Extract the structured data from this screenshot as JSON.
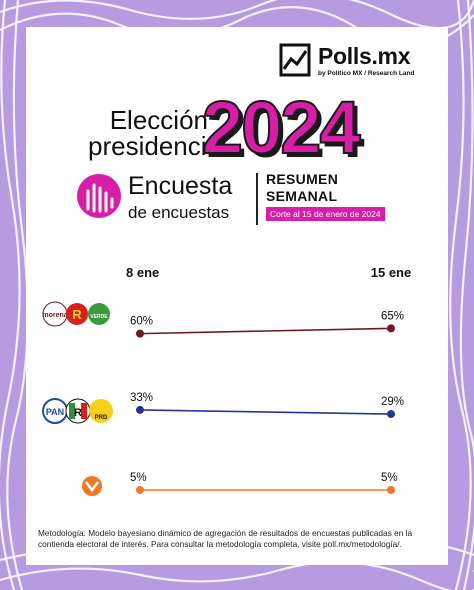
{
  "brand": {
    "name": "Polls.mx",
    "sub": "by Politico MX / Research Land"
  },
  "title": {
    "line1": "Elección",
    "line2": "presidencial",
    "year": "2024"
  },
  "encuesta": {
    "title": "Encuesta",
    "subtitle": "de encuestas"
  },
  "resumen": {
    "line1": "RESUMEN",
    "line2": "SEMANAL",
    "corte": "Corte al 15 de enero de 2024"
  },
  "parties": [
    {
      "name": "morena-pt-verde",
      "labels": [
        "morena",
        "PT",
        "VERDE"
      ]
    },
    {
      "name": "pan-pri-prd",
      "labels": [
        "PAN",
        "R",
        "PRD"
      ]
    },
    {
      "name": "movimiento-ciudadano",
      "labels": []
    }
  ],
  "chart_data": {
    "type": "line",
    "x": [
      "8 ene",
      "15 ene"
    ],
    "series": [
      {
        "values": [
          60,
          65
        ],
        "labels": [
          "60%",
          "65%"
        ],
        "color": "#6b1a1f"
      },
      {
        "values": [
          33,
          29
        ],
        "labels": [
          "33%",
          "29%"
        ],
        "color": "#2a3590"
      },
      {
        "values": [
          5,
          5
        ],
        "labels": [
          "5%",
          "5%"
        ],
        "color": "#f07a24"
      }
    ]
  },
  "footer": {
    "text": "Metodología: Modelo bayesiano dinámico de agregación de resultados de encuestas publicadas en la contienda electoral de interés. Para consultar la metodología completa, visite poll.mx/metodología/."
  },
  "colors": {
    "accent": "#d61ea6",
    "background": "#b79be0"
  }
}
